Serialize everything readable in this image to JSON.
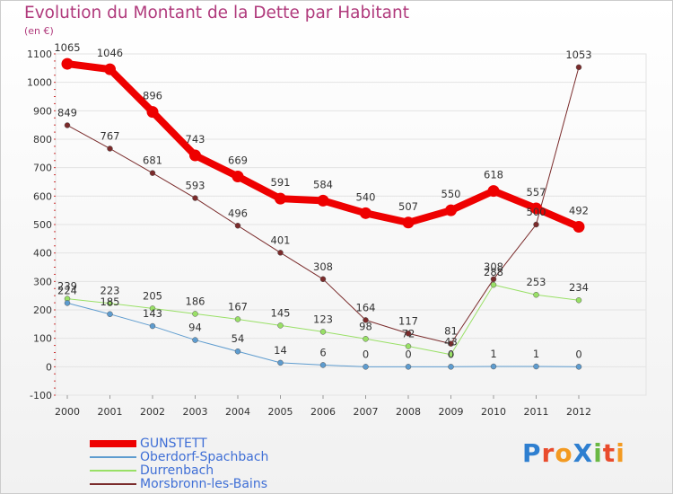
{
  "title": "Evolution du Montant de la Dette par Habitant",
  "unit_label": "(en €)",
  "logo": {
    "text": "ProXiti",
    "colors": [
      "#2e7fd0",
      "#e94b2c",
      "#f39a21",
      "#2e7fd0",
      "#6ab843",
      "#e94b2c",
      "#f39a21"
    ]
  },
  "chart_data": {
    "type": "line",
    "title": "Evolution du Montant de la Dette par Habitant",
    "ylabel": "(en €)",
    "xlabel": "",
    "x": [
      "2000",
      "2001",
      "2002",
      "2003",
      "2004",
      "2005",
      "2006",
      "2007",
      "2008",
      "2009",
      "2010",
      "2011",
      "2012"
    ],
    "ylim": [
      -100,
      1100
    ],
    "yticks": [
      -100,
      0,
      100,
      200,
      300,
      400,
      500,
      600,
      700,
      800,
      900,
      1000,
      1100
    ],
    "grid": true,
    "legend_position": "bottom-left",
    "series": [
      {
        "name": "GUNSTETT",
        "color": "#ee0000",
        "values": [
          1065,
          1046,
          896,
          743,
          669,
          591,
          584,
          540,
          507,
          550,
          618,
          557,
          492
        ]
      },
      {
        "name": "Oberdorf-Spachbach",
        "color": "#5e9ccf",
        "values": [
          224,
          185,
          143,
          94,
          54,
          14,
          6,
          0,
          0,
          0,
          1,
          1,
          0
        ]
      },
      {
        "name": "Durrenbach",
        "color": "#99e066",
        "values": [
          239,
          223,
          205,
          186,
          167,
          145,
          123,
          98,
          72,
          43,
          288,
          253,
          234
        ]
      },
      {
        "name": "Morsbronn-les-Bains",
        "color": "#7a2b2b",
        "values": [
          849,
          767,
          681,
          593,
          496,
          401,
          308,
          164,
          117,
          81,
          308,
          500,
          1053
        ]
      }
    ],
    "value_labels": [
      [
        "1065",
        "1046",
        "896",
        "743",
        "669",
        "591",
        "584",
        "540",
        "507",
        "550",
        "618",
        "557",
        "492"
      ],
      [
        "224",
        "185",
        "143",
        "94",
        "54",
        "14",
        "6",
        "0",
        "0",
        "0",
        "1",
        "1",
        "0"
      ],
      [
        "239",
        "223",
        "205",
        "186",
        "167",
        "145",
        "123",
        "98",
        "72",
        "43",
        "288",
        "253",
        "234"
      ],
      [
        "849",
        "767",
        "681",
        "593",
        "496",
        "401",
        "308",
        "164",
        "117",
        "81",
        "308",
        "500",
        "1053"
      ]
    ]
  }
}
